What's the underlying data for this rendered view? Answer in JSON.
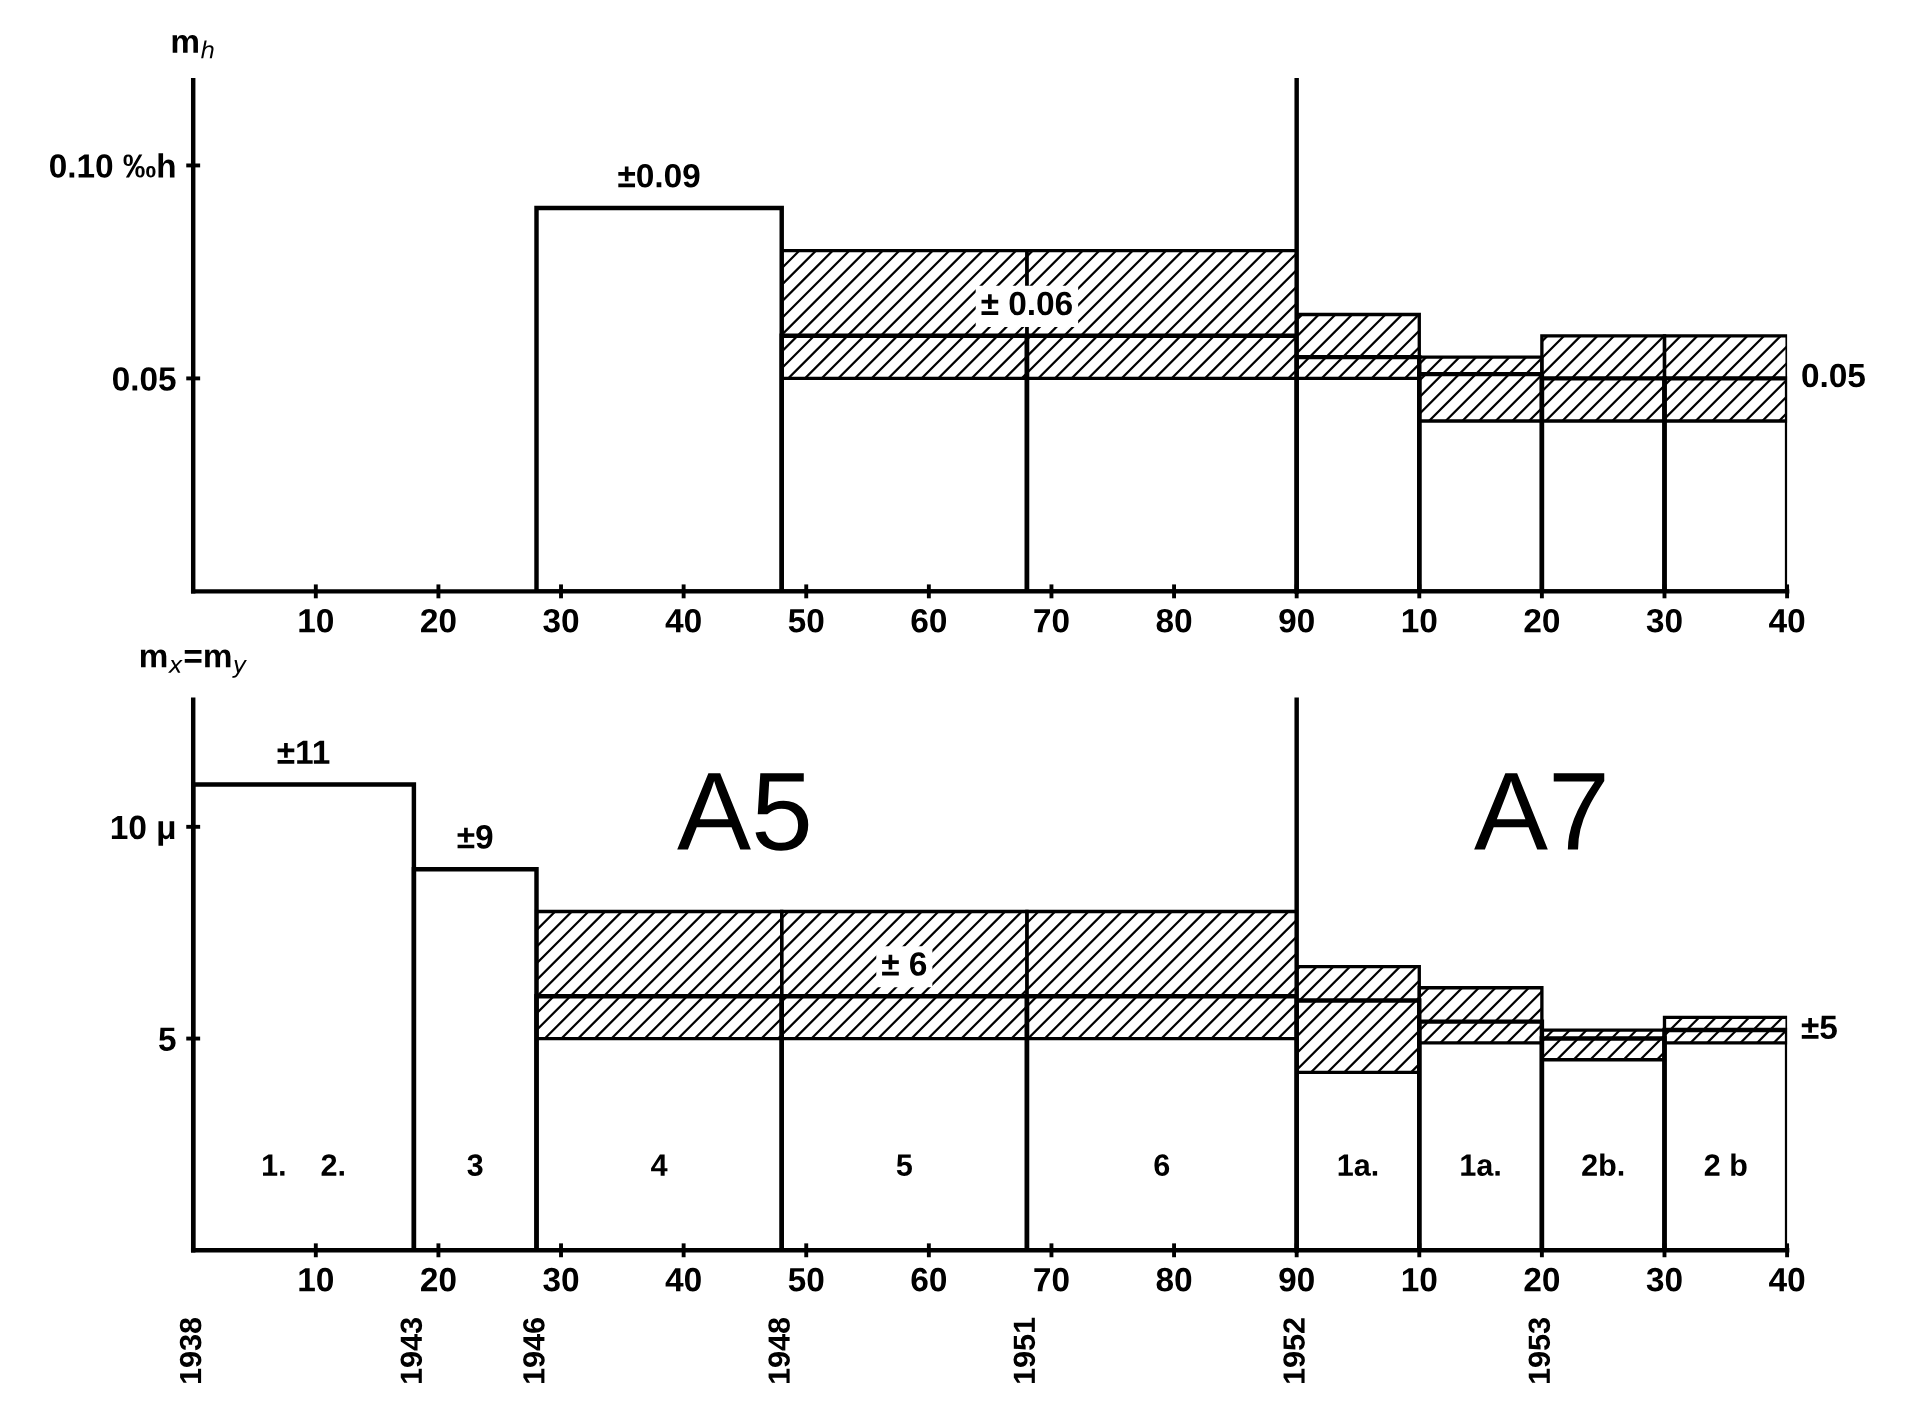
{
  "chart_data": [
    {
      "type": "histogram",
      "ylabel": "m$_{h}$",
      "xlim": [
        0,
        90
      ],
      "ylim": [
        0,
        0.12
      ],
      "xticks": [
        10,
        20,
        30,
        40,
        50,
        60,
        70,
        80,
        90
      ],
      "yticks": [
        {
          "value": 0.05,
          "label": "0.05"
        },
        {
          "value": 0.1,
          "label": "0.10 ‰h"
        }
      ],
      "bins": [
        28,
        48,
        68,
        90
      ],
      "series": [
        {
          "color": "#000000",
          "values": [
            0.09,
            0.06,
            0.06
          ]
        },
        {
          "color": "#000000",
          "values": [
            null,
            0.03,
            0.03
          ],
          "base": [
            null,
            0.05,
            0.05
          ]
        }
      ],
      "annotations": [
        {
          "text": "±0.09",
          "x": 38,
          "y": 0.09
        },
        {
          "text": "± 0.06",
          "x": 68,
          "y": 0.06
        }
      ]
    },
    {
      "type": "histogram",
      "xlim": [
        0,
        40
      ],
      "ylim": [
        0,
        0.12
      ],
      "tick_labels": "x",
      "xticks": [
        10,
        20,
        30,
        40
      ],
      "bins": [
        0,
        10,
        20,
        30,
        40
      ],
      "series": [
        {
          "color": "#000000",
          "values": [
            0.055,
            0.051,
            0.05,
            0.05
          ]
        },
        {
          "color": "#000000",
          "values": [
            0.015,
            0.015,
            0.02,
            0.02
          ],
          "base": [
            0.05,
            0.04,
            0.04,
            0.04
          ]
        }
      ],
      "annotations": [
        {
          "text": "0.05",
          "x": 40,
          "y": 0.05
        }
      ]
    },
    {
      "type": "histogram",
      "ylabel": "m$_{x}$=m$_{y}$",
      "xlim": [
        0,
        90
      ],
      "ylim": [
        0,
        13
      ],
      "xticks": [
        10,
        20,
        30,
        40,
        50,
        60,
        70,
        80,
        90
      ],
      "yticks": [
        5,
        {
          "value": 10,
          "label": "10 μ"
        }
      ],
      "bins": [
        0,
        18,
        28,
        48,
        68,
        90
      ],
      "series": [
        {
          "color": "#000000",
          "values": [
            11,
            9,
            6,
            6,
            6
          ]
        },
        {
          "color": "#000000",
          "values": [
            null,
            null,
            3,
            3,
            3
          ],
          "base": [
            null,
            null,
            5,
            5,
            5
          ]
        }
      ],
      "annotations": [
        {
          "text": "±11",
          "x": 9,
          "y": 11
        },
        {
          "text": "±9",
          "x": 23,
          "y": 9
        },
        {
          "text": "± 6",
          "x": 58,
          "y": 6
        },
        "A5",
        "1.    2.",
        "3",
        "4",
        "5",
        "6",
        {
          "text": "1938",
          "x": 0,
          "y": 0
        },
        {
          "text": "1943",
          "x": 18,
          "y": 0
        },
        {
          "text": "1946",
          "x": 28,
          "y": 0
        },
        {
          "text": "1948",
          "x": 48,
          "y": 0
        },
        {
          "text": "1951",
          "x": 68,
          "y": 0
        },
        {
          "text": "1952",
          "x": 90,
          "y": 0
        }
      ]
    },
    {
      "type": "histogram",
      "xlim": [
        0,
        40
      ],
      "ylim": [
        0,
        13
      ],
      "tick_labels": "x",
      "xticks": [
        10,
        20,
        30,
        40
      ],
      "bins": [
        0,
        10,
        20,
        30,
        40
      ],
      "series": [
        {
          "color": "#000000",
          "values": [
            5.9,
            5.4,
            5.0,
            5.2
          ]
        },
        {
          "color": "#000000",
          "values": [
            2.5,
            1.3,
            0.7,
            0.6
          ],
          "base": [
            4.2,
            4.9,
            4.5,
            4.9
          ]
        }
      ],
      "annotations": [
        {
          "text": "±5",
          "x": 40,
          "y": 5.2
        },
        "A7",
        "1a.",
        "1a.",
        "2b.",
        "2 b",
        {
          "text": "1953",
          "x": 20,
          "y": 0
        }
      ]
    }
  ]
}
